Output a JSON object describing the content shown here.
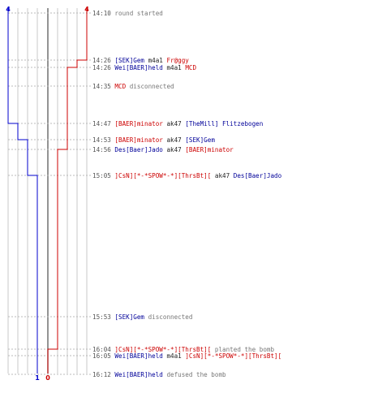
{
  "timeline": {
    "ct_color": "#0000cc",
    "t_color": "#cc0000",
    "ct_start_count": "4",
    "t_start_count": "4",
    "ct_end_count": "1",
    "t_end_count": "0"
  },
  "log": [
    {
      "time": "14:10",
      "parts": [
        {
          "cls": "event",
          "text": " round started"
        }
      ]
    },
    {
      "time": "14:26",
      "parts": [
        {
          "cls": "ct",
          "text": " [SEK]Gem"
        },
        {
          "cls": "weapon",
          "text": " m4a1 "
        },
        {
          "cls": "t",
          "text": "Fr@ggy"
        }
      ]
    },
    {
      "time": "14:26",
      "parts": [
        {
          "cls": "ct",
          "text": " Wei[BAER]held"
        },
        {
          "cls": "weapon",
          "text": " m4a1 "
        },
        {
          "cls": "t",
          "text": "MCD"
        }
      ]
    },
    {
      "time": "14:35",
      "parts": [
        {
          "cls": "t",
          "text": " MCD"
        },
        {
          "cls": "event",
          "text": " disconnected"
        }
      ]
    },
    {
      "time": "14:47",
      "parts": [
        {
          "cls": "t",
          "text": " [BAER]minator"
        },
        {
          "cls": "weapon",
          "text": " ak47 "
        },
        {
          "cls": "ct",
          "text": "[TheMill] Flitzebogen"
        }
      ]
    },
    {
      "time": "14:53",
      "parts": [
        {
          "cls": "t",
          "text": " [BAER]minator"
        },
        {
          "cls": "weapon",
          "text": " ak47 "
        },
        {
          "cls": "ct",
          "text": "[SEK]Gem"
        }
      ]
    },
    {
      "time": "14:56",
      "parts": [
        {
          "cls": "ct",
          "text": " Des[Baer]Jado"
        },
        {
          "cls": "weapon",
          "text": " ak47 "
        },
        {
          "cls": "t",
          "text": "[BAER]minator"
        }
      ]
    },
    {
      "time": "15:05",
      "parts": [
        {
          "cls": "t",
          "text": " ]CsN][*-*SPOW*-*][ThrsBt]["
        },
        {
          "cls": "weapon",
          "text": " ak47 "
        },
        {
          "cls": "ct",
          "text": "Des[Baer]Jado"
        }
      ]
    },
    {
      "time": "15:53",
      "parts": [
        {
          "cls": "ct",
          "text": " [SEK]Gem"
        },
        {
          "cls": "event",
          "text": " disconnected"
        }
      ]
    },
    {
      "time": "16:04",
      "parts": [
        {
          "cls": "t",
          "text": " ]CsN][*-*SPOW*-*][ThrsBt]["
        },
        {
          "cls": "event",
          "text": " planted the bomb"
        }
      ]
    },
    {
      "time": "16:05",
      "parts": [
        {
          "cls": "ct",
          "text": " Wei[BAER]held"
        },
        {
          "cls": "weapon",
          "text": " m4a1 "
        },
        {
          "cls": "t",
          "text": "]CsN][*-*SPOW*-*][ThrsBt]["
        }
      ]
    },
    {
      "time": "16:12",
      "parts": [
        {
          "cls": "ct",
          "text": " Wei[BAER]held"
        },
        {
          "cls": "event",
          "text": " defused the bomb"
        }
      ]
    }
  ]
}
